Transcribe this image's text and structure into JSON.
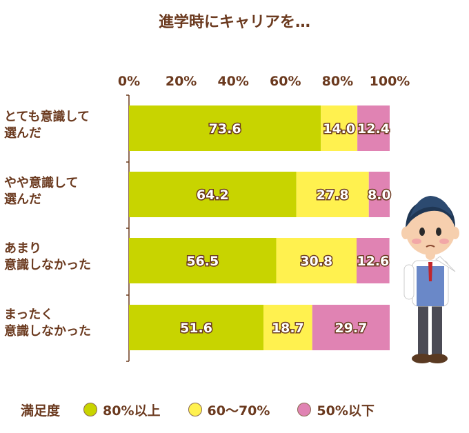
{
  "chart_data": {
    "type": "bar",
    "orientation": "horizontal-stacked",
    "title": "進学時にキャリアを…",
    "categories": [
      "とても意識して\n選んだ",
      "やや意識して\n選んだ",
      "あまり\n意識しなかった",
      "まったく\n意識しなかった"
    ],
    "series": [
      {
        "name": "80%以上",
        "color": "#c8d400",
        "values": [
          73.6,
          64.2,
          56.5,
          51.6
        ]
      },
      {
        "name": "60〜70%",
        "color": "#fff14f",
        "values": [
          14.0,
          27.8,
          30.8,
          18.7
        ]
      },
      {
        "name": "50%以下",
        "color": "#e083b3",
        "values": [
          12.4,
          8.0,
          12.6,
          29.7
        ]
      }
    ],
    "xlim": [
      0,
      100
    ],
    "xticks": [
      "0%",
      "20%",
      "40%",
      "60%",
      "80%",
      "100%"
    ],
    "legend_title": "満足度",
    "legend_position": "bottom"
  }
}
